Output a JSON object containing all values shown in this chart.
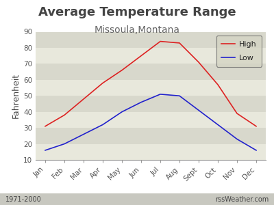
{
  "title": "Average Temperature Range",
  "subtitle": "Missoula,Montana",
  "ylabel": "Fahrenheit",
  "months": [
    "Jan",
    "Feb",
    "Mar",
    "Apr",
    "May",
    "Jun",
    "Jul",
    "Aug",
    "Sept",
    "Oct",
    "Nov",
    "Dec"
  ],
  "high": [
    31,
    38,
    48,
    58,
    66,
    75,
    84,
    83,
    71,
    57,
    39,
    31
  ],
  "low": [
    16,
    20,
    26,
    32,
    40,
    46,
    51,
    50,
    41,
    32,
    23,
    16
  ],
  "high_color": "#dd2222",
  "low_color": "#2222cc",
  "bg_plot_light": "#e8e8dc",
  "bg_plot_dark": "#d8d8cc",
  "bg_fig": "#ffffff",
  "bg_bottom": "#cccccc",
  "ylim": [
    10,
    90
  ],
  "yticks": [
    10,
    20,
    30,
    40,
    50,
    60,
    70,
    80,
    90
  ],
  "footer_left": "1971-2000",
  "footer_right": "rssWeather.com",
  "legend_bg": "#d4d4c4",
  "title_fontsize": 13,
  "subtitle_fontsize": 10,
  "tick_fontsize": 7.5,
  "label_fontsize": 9
}
